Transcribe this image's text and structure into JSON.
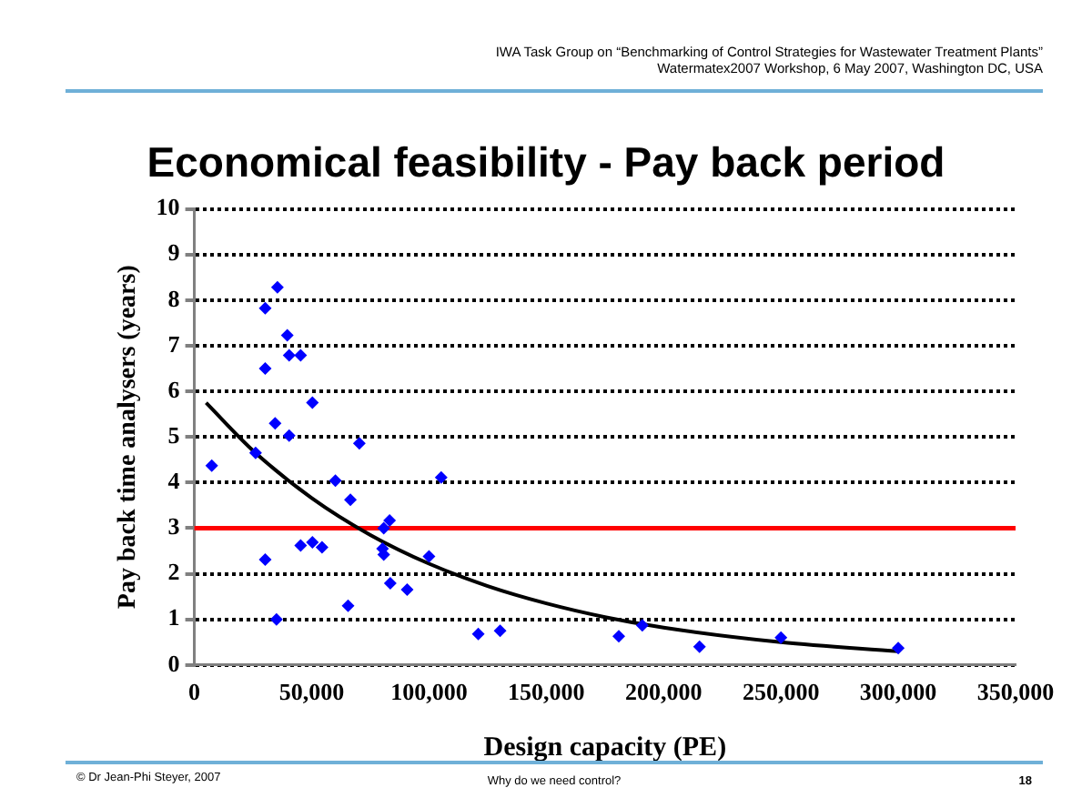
{
  "chart_data": {
    "type": "scatter",
    "title": "Economical feasibility - Pay back period",
    "xlabel": "Design capacity (PE)",
    "ylabel": "Pay back time analysers (years)",
    "annotations": [
      "IWA Task Group on “Benchmarking of Control Strategies for Wastewater Treatment Plants”",
      "Watermatex2007 Workshop, 6 May 2007, Washington DC, USA",
      "© Dr Jean-Phi Steyer, 2007",
      "Why do we need control?",
      "18"
    ],
    "xlim": [
      0,
      350000
    ],
    "xticks": [
      0,
      {
        "value": 50000,
        "label": "50,000"
      },
      {
        "value": 100000,
        "label": "100,000"
      },
      {
        "value": 150000,
        "label": "150,000"
      },
      {
        "value": 200000,
        "label": "200,000"
      },
      {
        "value": 250000,
        "label": "250,000"
      },
      {
        "value": 300000,
        "label": "300,000"
      },
      {
        "value": 350000,
        "label": "350,000"
      }
    ],
    "ylim": [
      0,
      10
    ],
    "yticks": [
      0,
      1,
      2,
      3,
      4,
      5,
      6,
      7,
      8,
      9,
      10
    ],
    "grid": "y",
    "legend": false,
    "marker": "diamond",
    "ref_lines": [
      {
        "axis": "y",
        "value": 3,
        "color": "#ff0000"
      }
    ],
    "series": [
      {
        "type": "scatter",
        "color": "#0000ff",
        "x": [
          35400,
          30200,
          39600,
          40400,
          45300,
          30200,
          50300,
          34400,
          40400,
          70300,
          7400,
          26100,
          105200,
          60100,
          66500,
          83200,
          80700,
          45300,
          50300,
          54400,
          80200,
          80700,
          30200,
          100000,
          83500,
          90700,
          65500,
          35000,
          121000,
          130300,
          180900,
          190900,
          215300,
          250000,
          300000
        ],
        "values": [
          8.28,
          7.82,
          7.23,
          6.79,
          6.79,
          6.5,
          5.75,
          5.3,
          5.03,
          4.86,
          4.37,
          4.65,
          4.11,
          4.04,
          3.62,
          3.17,
          3.0,
          2.62,
          2.69,
          2.58,
          2.55,
          2.42,
          2.31,
          2.38,
          1.79,
          1.65,
          1.3,
          1.0,
          0.68,
          0.75,
          0.63,
          0.87,
          0.4,
          0.6,
          0.37
        ]
      },
      {
        "type": "line",
        "color": "#000000",
        "line_style": "solid",
        "marker": "none",
        "x": [
          5000,
          25000,
          50000,
          75000,
          100000,
          125000,
          150000,
          175000,
          200000,
          250000,
          300000
        ],
        "values": [
          5.75,
          4.7,
          3.66,
          2.85,
          2.22,
          1.73,
          1.35,
          1.05,
          0.82,
          0.5,
          0.3
        ]
      }
    ]
  }
}
